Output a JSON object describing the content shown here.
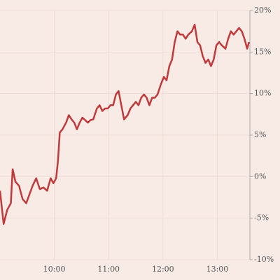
{
  "chart_data": {
    "type": "line",
    "color": "#c0393b",
    "grid": true,
    "x": [
      540,
      544,
      548,
      552,
      554,
      557,
      561,
      565,
      569,
      572,
      576,
      580,
      584,
      588,
      592,
      596,
      599,
      602,
      604,
      606,
      609,
      613,
      616,
      619,
      622,
      625,
      628,
      631,
      634,
      637,
      640,
      643,
      647,
      650,
      653,
      656,
      659,
      662,
      665,
      668,
      671,
      674,
      677,
      681,
      684,
      687,
      690,
      693,
      696,
      699,
      702,
      705,
      708,
      711,
      714,
      718,
      721,
      724,
      727,
      730,
      733,
      736,
      739,
      742,
      745,
      748,
      752,
      755,
      758,
      761,
      764,
      767,
      770,
      773,
      776,
      779,
      782,
      785,
      789,
      792,
      795,
      798,
      801,
      804,
      807,
      810,
      813,
      815
    ],
    "values": [
      -1.7,
      -5.7,
      -4.0,
      -3.2,
      0.9,
      -0.6,
      -1.1,
      -2.7,
      -3.2,
      -2.3,
      -1.1,
      -0.2,
      -1.5,
      -1.3,
      -1.7,
      -0.2,
      -0.8,
      -0.2,
      1.9,
      5.3,
      5.7,
      6.5,
      7.4,
      6.9,
      6.5,
      5.7,
      6.5,
      7.1,
      6.8,
      6.5,
      6.8,
      6.9,
      8.2,
      8.6,
      7.9,
      8.2,
      8.2,
      8.6,
      8.6,
      9.9,
      10.3,
      8.6,
      6.9,
      7.4,
      8.2,
      8.6,
      9.0,
      8.6,
      9.5,
      9.9,
      9.5,
      8.6,
      9.5,
      9.5,
      9.9,
      11.2,
      12.0,
      11.6,
      13.3,
      14.1,
      16.2,
      17.5,
      17.1,
      17.1,
      16.6,
      17.1,
      17.5,
      18.3,
      16.2,
      15.8,
      14.5,
      13.7,
      14.1,
      13.3,
      14.1,
      15.8,
      16.2,
      15.8,
      15.4,
      16.6,
      17.5,
      17.1,
      17.5,
      17.9,
      17.5,
      16.6,
      15.4,
      16.2
    ],
    "xlim": [
      540,
      816
    ],
    "xticks": [
      {
        "value": 600,
        "label": "10:00"
      },
      {
        "value": 660,
        "label": "11:00"
      },
      {
        "value": 720,
        "label": "12:00"
      },
      {
        "value": 780,
        "label": "13:00"
      }
    ],
    "ylim": [
      -10,
      20
    ],
    "yticks": [
      {
        "value": -10,
        "label": "-10%"
      },
      {
        "value": -5,
        "label": "-5%"
      },
      {
        "value": 0,
        "label": "0%"
      },
      {
        "value": 5,
        "label": "5%"
      },
      {
        "value": 10,
        "label": "10%"
      },
      {
        "value": 15,
        "label": "15%"
      },
      {
        "value": 20,
        "label": "20%"
      }
    ]
  }
}
